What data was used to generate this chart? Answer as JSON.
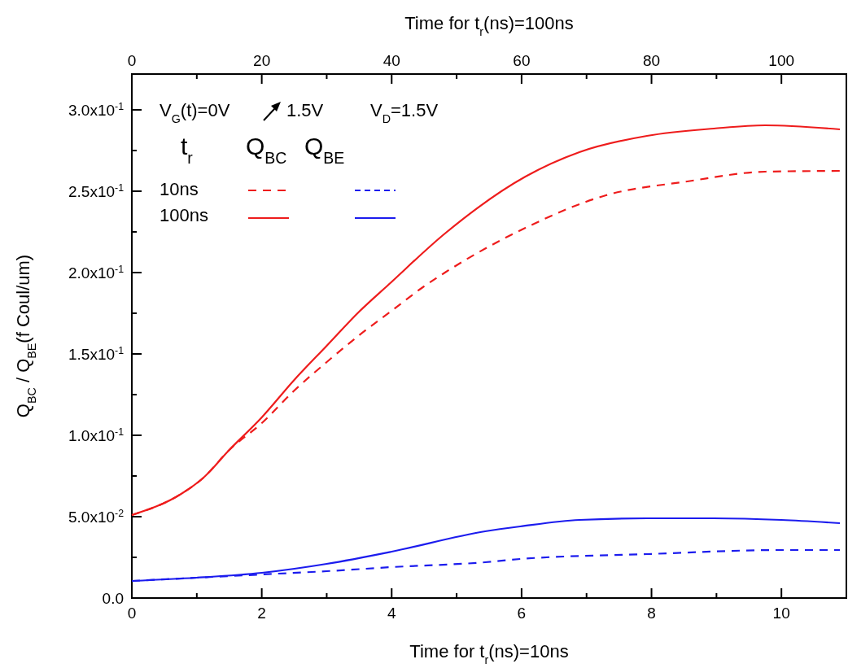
{
  "chart_data": {
    "type": "line",
    "xlabel": "Time for t$_{r}$(ns)=10ns",
    "x2label": "Time for t$_{r}$(ns)=100ns",
    "ylabel": "Q$_{BC}$ / Q$_{BE}$(f Coul/um)",
    "xlim": [
      0,
      11
    ],
    "xticks": [
      0,
      {
        "value": 1,
        "label": null
      },
      2,
      {
        "value": 3,
        "label": null
      },
      4,
      {
        "value": 5,
        "label": null
      },
      6,
      {
        "value": 7,
        "label": null
      },
      8,
      {
        "value": 9,
        "label": null
      },
      10
    ],
    "x2lim": [
      0,
      110
    ],
    "x2ticks": [
      0,
      {
        "value": 10,
        "label": null
      },
      20,
      {
        "value": 30,
        "label": null
      },
      40,
      {
        "value": 50,
        "label": null
      },
      60,
      {
        "value": 70,
        "label": null
      },
      80,
      {
        "value": 90,
        "label": null
      },
      100
    ],
    "ylim": [
      0,
      0.322
    ],
    "yticks": [
      {
        "value": 0,
        "label": "0.0"
      },
      {
        "value": 0.025,
        "label": null
      },
      {
        "value": 0.05,
        "label": "5.0x10$^{-2}$"
      },
      {
        "value": 0.075,
        "label": null
      },
      {
        "value": 0.1,
        "label": "1.0x10$^{-1}$"
      },
      {
        "value": 0.125,
        "label": null
      },
      {
        "value": 0.15,
        "label": "1.5x10$^{-1}$"
      },
      {
        "value": 0.175,
        "label": null
      },
      {
        "value": 0.2,
        "label": "2.0x10$^{-1}$"
      },
      {
        "value": 0.225,
        "label": null
      },
      {
        "value": 0.25,
        "label": "2.5x10$^{-1}$"
      },
      {
        "value": 0.275,
        "label": null
      },
      {
        "value": 0.3,
        "label": "3.0x10$^{-1}$"
      }
    ],
    "grid": false,
    "marker": "none",
    "annotations": [
      "V$_{G}$(t)=0V",
      "1.5V",
      "V$_{D}$=1.5V",
      "t$_{r}$",
      "Q$_{BC}$",
      "Q$_{BE}$",
      "10ns",
      "100ns"
    ],
    "series": [
      {
        "color": "#ee1c1c",
        "line_style": "dashed",
        "x": [
          0,
          0.76,
          1.09,
          1.5,
          2,
          2.5,
          3,
          3.5,
          4,
          4.48,
          4.82,
          6.06,
          7.3,
          8.55,
          9.75,
          10.9
        ],
        "values": [
          0.051,
          0.064,
          0.0735,
          0.091,
          0.1075,
          0.1275,
          0.145,
          0.1615,
          0.1765,
          0.191,
          0.2,
          0.2275,
          0.2475,
          0.256,
          0.262,
          0.2625
        ]
      },
      {
        "color": "#1c1cee",
        "line_style": "dashed",
        "x": [
          0,
          1,
          2,
          3,
          4,
          5.44,
          5.98,
          7.93,
          10,
          10.9
        ],
        "values": [
          0.0105,
          0.0125,
          0.0145,
          0.0165,
          0.019,
          0.022,
          0.024,
          0.027,
          0.0295,
          0.0295
        ]
      },
      {
        "color": "#ee1c1c",
        "line_style": "solid",
        "axis": "x2",
        "x": [
          0,
          7.6,
          10.9,
          15,
          20,
          25,
          30,
          35,
          39.5,
          48.2,
          60.6,
          68.9,
          79.3,
          89.6,
          97.5,
          109
        ],
        "values": [
          0.051,
          0.064,
          0.0735,
          0.091,
          0.111,
          0.134,
          0.155,
          0.176,
          0.1925,
          0.224,
          0.259,
          0.274,
          0.284,
          0.2885,
          0.2905,
          0.288
        ]
      },
      {
        "color": "#1c1cee",
        "line_style": "solid",
        "axis": "x2",
        "x": [
          0,
          10,
          20,
          30,
          40,
          54.4,
          59.8,
          68.9,
          79.3,
          89.6,
          100,
          109
        ],
        "values": [
          0.0105,
          0.0125,
          0.0155,
          0.021,
          0.0285,
          0.041,
          0.044,
          0.048,
          0.049,
          0.049,
          0.048,
          0.046
        ]
      }
    ]
  }
}
